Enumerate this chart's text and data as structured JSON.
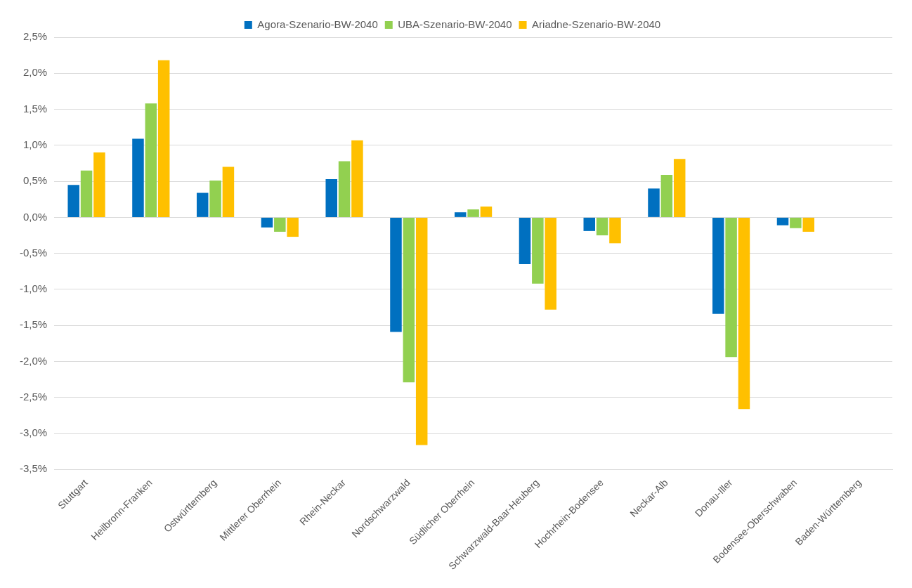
{
  "chart_data": {
    "type": "bar",
    "categories": [
      "Stuttgart",
      "Heilbronn-Franken",
      "Ostwürttemberg",
      "Mittlerer Oberrhein",
      "Rhein-Neckar",
      "Nordschwarzwald",
      "Südlicher Oberrhein",
      "Schwarzwald-Baar-Heuberg",
      "Hochrhein-Bodensee",
      "Neckar-Alb",
      "Donau-Iller",
      "Bodensee-Oberschwaben",
      "Baden-Württemberg"
    ],
    "series": [
      {
        "name": "Agora-Szenario-BW-2040",
        "color": "#0070c0",
        "values": [
          0.45,
          1.09,
          0.34,
          -0.14,
          0.53,
          -1.59,
          0.07,
          -0.65,
          -0.19,
          0.4,
          -1.34,
          -0.11,
          null
        ]
      },
      {
        "name": "UBA-Szenario-BW-2040",
        "color": "#92d050",
        "values": [
          0.65,
          1.58,
          0.51,
          -0.2,
          0.78,
          -2.29,
          0.11,
          -0.92,
          -0.25,
          0.59,
          -1.94,
          -0.15,
          null
        ]
      },
      {
        "name": "Ariadne-Szenario-BW-2040",
        "color": "#ffc000",
        "values": [
          0.9,
          2.18,
          0.7,
          -0.27,
          1.07,
          -3.16,
          0.15,
          -1.28,
          -0.36,
          0.81,
          -2.66,
          -0.2,
          null
        ]
      }
    ],
    "ylim": [
      -3.5,
      2.5
    ],
    "yticks": [
      {
        "value": -3.5,
        "label": "-3,5%"
      },
      {
        "value": -3,
        "label": "-3,0%"
      },
      {
        "value": -2.5,
        "label": "-2,5%"
      },
      {
        "value": -2,
        "label": "-2,0%"
      },
      {
        "value": -1.5,
        "label": "-1,5%"
      },
      {
        "value": -1,
        "label": "-1,0%"
      },
      {
        "value": -0.5,
        "label": "-0,5%"
      },
      {
        "value": 0,
        "label": "0,0%"
      },
      {
        "value": 0.5,
        "label": "0,5%"
      },
      {
        "value": 1,
        "label": "1,0%"
      },
      {
        "value": 1.5,
        "label": "1,5%"
      },
      {
        "value": 2,
        "label": "2,0%"
      },
      {
        "value": 2.5,
        "label": "2,5%"
      }
    ],
    "grid": "y",
    "legend": "top"
  }
}
